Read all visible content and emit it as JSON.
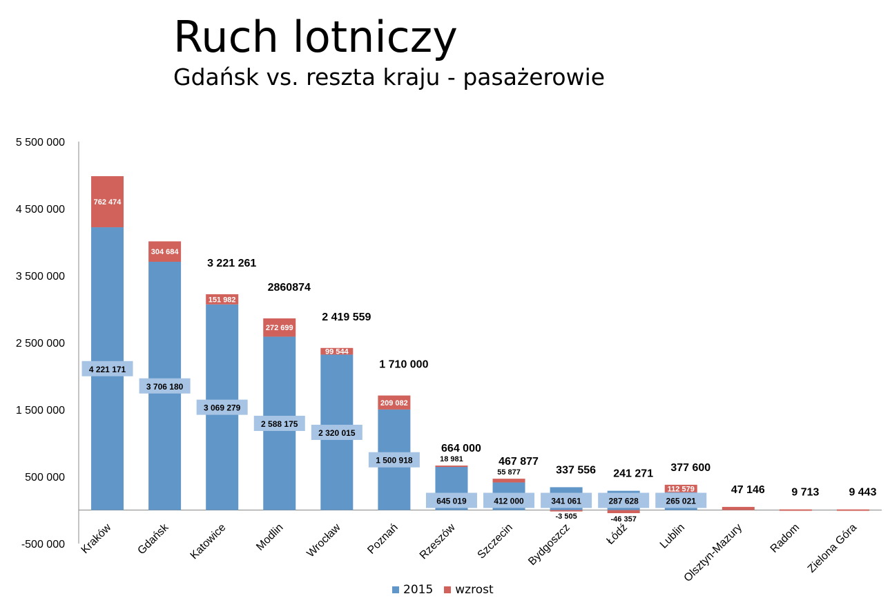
{
  "title": "Ruch lotniczy",
  "subtitle": "Gdańsk vs. reszta kraju - pasażerowie",
  "colors": {
    "base": "#6196c9",
    "growth": "#d0625b",
    "label_box": "#a7c4e4"
  },
  "chart_data": {
    "type": "bar",
    "stacked": true,
    "title": "Ruch lotniczy",
    "subtitle": "Gdańsk vs. reszta kraju - pasażerowie",
    "xlabel": "",
    "ylabel": "",
    "ylim": [
      -500000,
      5500000
    ],
    "yticks": [
      -500000,
      500000,
      1500000,
      2500000,
      3500000,
      4500000,
      5500000
    ],
    "ytick_labels": [
      "-500 000",
      "500 000",
      "1 500 000",
      "2 500 000",
      "3 500 000",
      "4 500 000",
      "5 500 000"
    ],
    "legend_position": "bottom",
    "categories": [
      "Kraków",
      "Gdańsk",
      "Katowice",
      "Modlin",
      "Wrocław",
      "Poznań",
      "Rzeszów",
      "Szczecin",
      "Bydgoszcz",
      "Łódź",
      "Lublin",
      "Olsztyn-Mazury",
      "Radom",
      "Zielona Góra"
    ],
    "series": [
      {
        "name": "2015",
        "values": [
          4221171,
          3706180,
          3069279,
          2588175,
          2320015,
          1500918,
          645019,
          412000,
          341061,
          287628,
          265021,
          null,
          null,
          null
        ]
      },
      {
        "name": "wzrost",
        "values": [
          762474,
          304684,
          151982,
          272699,
          99544,
          209082,
          18981,
          55877,
          -3505,
          -46357,
          112579,
          47146,
          9713,
          9443
        ]
      }
    ],
    "base_labels": [
      "4 221 171",
      "3 706 180",
      "3 069 279",
      "2 588 175",
      "2 320 015",
      "1 500 918",
      "645 019",
      "412 000",
      "341 061",
      "287 628",
      "265 021",
      "",
      "",
      ""
    ],
    "growth_labels": [
      "762 474",
      "304 684",
      "151 982",
      "272 699",
      "99 544",
      "209 082",
      "18 981",
      "55 877",
      "-3 505",
      "-46 357",
      "112 579",
      "",
      "",
      ""
    ],
    "total_labels": [
      "",
      "",
      "3 221 261",
      "2860874",
      "2 419 559",
      "1 710 000",
      "664 000",
      "467 877",
      "337 556",
      "241 271",
      "377 600",
      "47 146",
      "9 713",
      "9 443"
    ]
  }
}
